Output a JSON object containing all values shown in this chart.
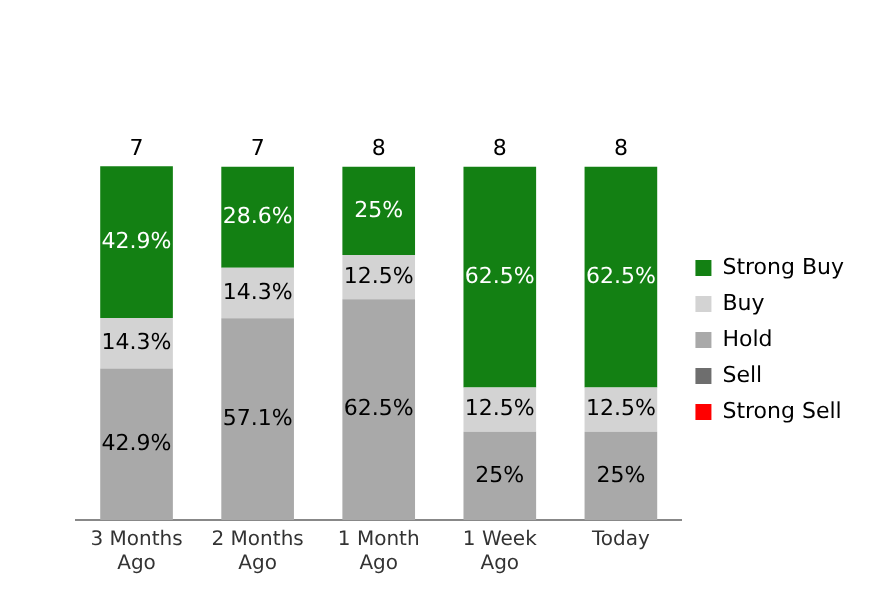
{
  "chart_data": {
    "type": "bar",
    "stacked": true,
    "categories": [
      "3 Months Ago",
      "2 Months Ago",
      "1 Month Ago",
      "1 Week Ago",
      "Today"
    ],
    "series": [
      {
        "name": "Strong Sell",
        "color": "#ff0000",
        "values": [
          0,
          0,
          0,
          0,
          0
        ],
        "value_labels": [
          null,
          null,
          null,
          null,
          null
        ]
      },
      {
        "name": "Sell",
        "color": "#6e6e6e",
        "values": [
          0,
          0,
          0,
          0,
          0
        ],
        "value_labels": [
          null,
          null,
          null,
          null,
          null
        ]
      },
      {
        "name": "Hold",
        "color": "#a9a9a9",
        "values": [
          42.9,
          57.1,
          62.5,
          25,
          25
        ],
        "value_labels": [
          "42.9%",
          "57.1%",
          "62.5%",
          "25%",
          "25%"
        ]
      },
      {
        "name": "Buy",
        "color": "#d3d3d3",
        "values": [
          14.3,
          14.3,
          12.5,
          12.5,
          12.5
        ],
        "value_labels": [
          "14.3%",
          "14.3%",
          "12.5%",
          "12.5%",
          "12.5%"
        ]
      },
      {
        "name": "Strong Buy",
        "color": "#138013",
        "values": [
          42.9,
          28.6,
          25,
          62.5,
          62.5
        ],
        "value_labels": [
          "42.9%",
          "28.6%",
          "25%",
          "62.5%",
          "62.5%"
        ]
      }
    ],
    "annotations": [
      {
        "text": "7",
        "x": "3 Months Ago",
        "y": 100
      },
      {
        "text": "7",
        "x": "2 Months Ago",
        "y": 100
      },
      {
        "text": "8",
        "x": "1 Month Ago",
        "y": 100
      },
      {
        "text": "8",
        "x": "1 Week Ago",
        "y": 100
      },
      {
        "text": "8",
        "x": "Today",
        "y": 100
      }
    ],
    "legend": "right",
    "grid": false,
    "tick_labels": "x"
  }
}
